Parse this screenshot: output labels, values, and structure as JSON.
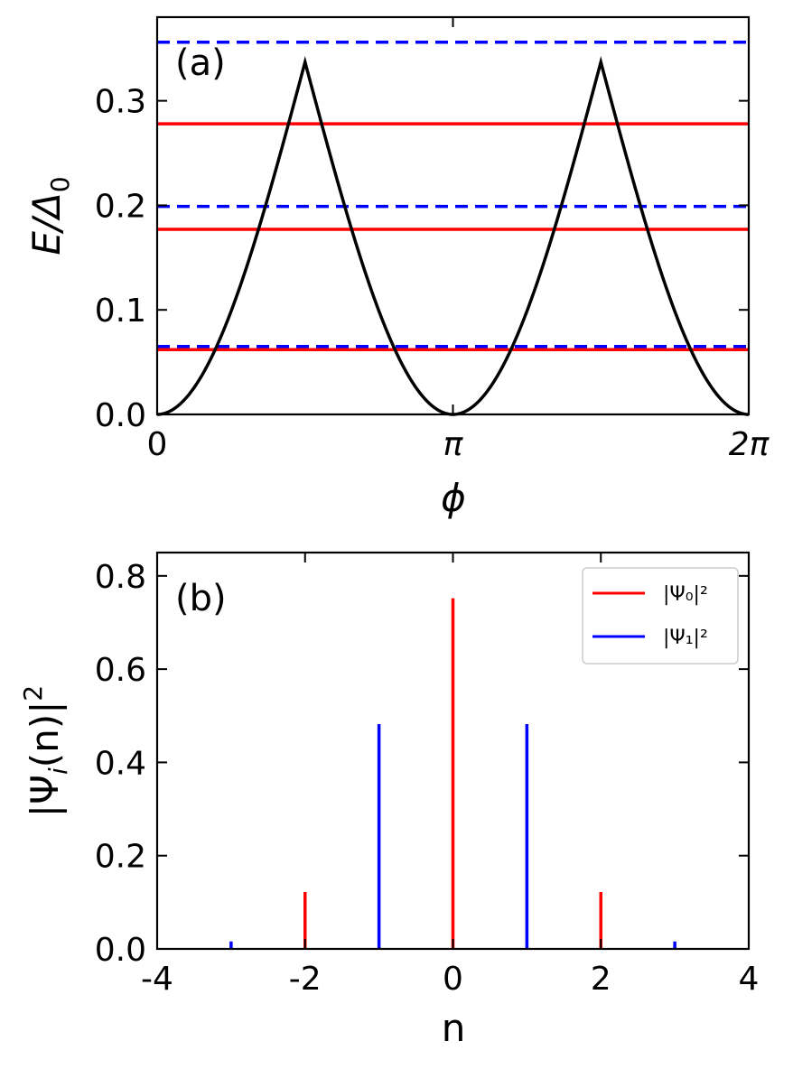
{
  "chart_data": [
    {
      "panel_label": "(a)",
      "type": "line",
      "xlabel": "ϕ",
      "ylabel": "E/Δ",
      "ylabel_subscript": "0",
      "xlim": [
        0,
        6.283185307
      ],
      "ylim": [
        0,
        0.38
      ],
      "x_ticks": [
        {
          "value": 0,
          "label": "0"
        },
        {
          "value": 3.141592654,
          "label": "π"
        },
        {
          "value": 6.283185307,
          "label": "2π"
        }
      ],
      "y_ticks": [
        {
          "value": 0.0,
          "label": "0.0"
        },
        {
          "value": 0.1,
          "label": "0.1"
        },
        {
          "value": 0.2,
          "label": "0.2"
        },
        {
          "value": 0.3,
          "label": "0.3"
        }
      ],
      "curve": {
        "name": "potential",
        "color": "#000000",
        "peak": 0.337,
        "period": 3.141592654
      },
      "levels": [
        {
          "name": "level-red-0",
          "energy": 0.062,
          "color": "#ff0000",
          "style": "solid"
        },
        {
          "name": "level-blue-0",
          "energy": 0.065,
          "color": "#0000ff",
          "style": "dashed"
        },
        {
          "name": "level-red-1",
          "energy": 0.177,
          "color": "#ff0000",
          "style": "solid"
        },
        {
          "name": "level-blue-1",
          "energy": 0.199,
          "color": "#0000ff",
          "style": "dashed"
        },
        {
          "name": "level-red-2",
          "energy": 0.278,
          "color": "#ff0000",
          "style": "solid"
        },
        {
          "name": "level-blue-2",
          "energy": 0.356,
          "color": "#0000ff",
          "style": "dashed"
        }
      ]
    },
    {
      "panel_label": "(b)",
      "type": "bar",
      "xlabel": "n",
      "ylabel": "|Ψ",
      "ylabel_subscript": "i",
      "ylabel_tail": "(n)|",
      "ylabel_sup": "2",
      "xlim": [
        -4,
        4
      ],
      "ylim": [
        0,
        0.85
      ],
      "x_ticks": [
        {
          "value": -4,
          "label": "-4"
        },
        {
          "value": -2,
          "label": "-2"
        },
        {
          "value": 0,
          "label": "0"
        },
        {
          "value": 2,
          "label": "2"
        },
        {
          "value": 4,
          "label": "4"
        }
      ],
      "y_ticks": [
        {
          "value": 0.0,
          "label": "0.0"
        },
        {
          "value": 0.2,
          "label": "0.2"
        },
        {
          "value": 0.4,
          "label": "0.4"
        },
        {
          "value": 0.6,
          "label": "0.6"
        },
        {
          "value": 0.8,
          "label": "0.8"
        }
      ],
      "series": [
        {
          "name": "psi0",
          "legend": "|Ψ₀|²",
          "color": "#ff0000",
          "points": [
            {
              "n": -2,
              "value": 0.122
            },
            {
              "n": 0,
              "value": 0.752
            },
            {
              "n": 2,
              "value": 0.122
            }
          ]
        },
        {
          "name": "psi1",
          "legend": "|Ψ₁|²",
          "color": "#0000ff",
          "points": [
            {
              "n": -3,
              "value": 0.016
            },
            {
              "n": -1,
              "value": 0.482
            },
            {
              "n": 1,
              "value": 0.482
            },
            {
              "n": 3,
              "value": 0.016
            }
          ]
        }
      ],
      "legend_position": "top-right"
    }
  ]
}
